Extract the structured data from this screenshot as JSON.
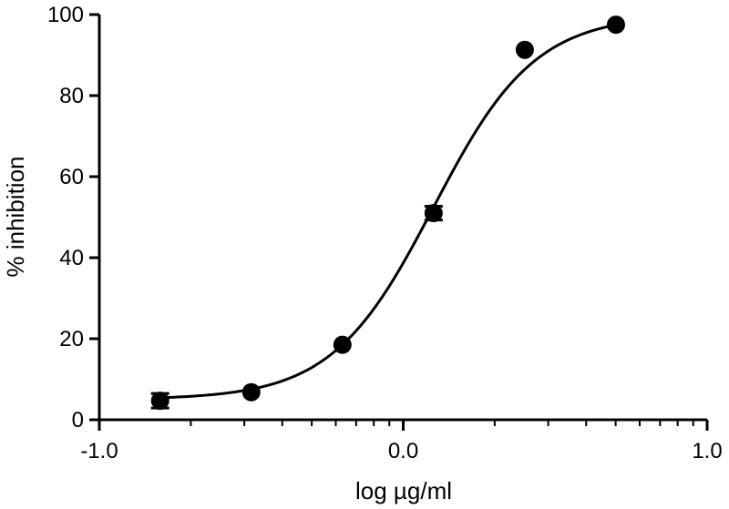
{
  "chart_data": {
    "type": "scatter",
    "title": "",
    "xlabel": "log µg/ml",
    "ylabel": "% inhibition",
    "xlim": [
      -1.0,
      1.0
    ],
    "ylim": [
      0,
      100
    ],
    "x_ticks": [
      -1.0,
      0.0,
      1.0
    ],
    "x_tick_labels": [
      "-1.0",
      "0.0",
      "1.0"
    ],
    "y_ticks": [
      0,
      20,
      40,
      60,
      80,
      100
    ],
    "y_tick_labels": [
      "0",
      "20",
      "40",
      "60",
      "80",
      "100"
    ],
    "x_minor_scale": "log",
    "grid": false,
    "series": [
      {
        "points": [
          {
            "x": -0.8,
            "y": 4.7,
            "err": 1.8
          },
          {
            "x": -0.5,
            "y": 6.8,
            "err": 0
          },
          {
            "x": -0.2,
            "y": 18.5,
            "err": 0
          },
          {
            "x": 0.1,
            "y": 51.0,
            "err": 1.7
          },
          {
            "x": 0.4,
            "y": 91.3,
            "err": 0
          },
          {
            "x": 0.7,
            "y": 97.5,
            "err": 0
          }
        ]
      }
    ],
    "fit_curve": {
      "model": "sigmoidal dose-response",
      "bottom": 5.0,
      "top": 100.0,
      "log_ec50": 0.1,
      "hill_slope": 2.6
    }
  }
}
